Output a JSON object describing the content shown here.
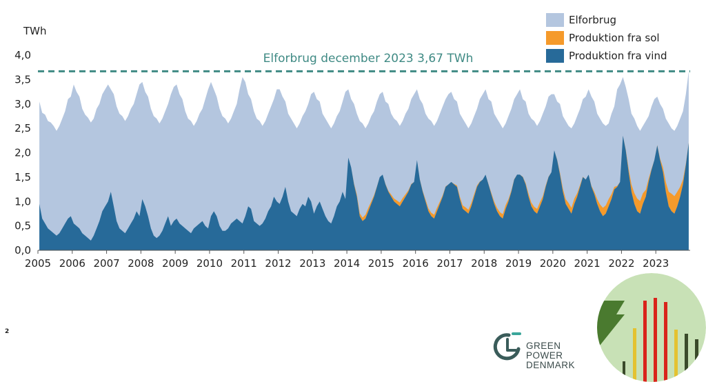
{
  "chart_data": {
    "type": "area",
    "title": "",
    "ylabel": "TWh",
    "xlabel": "",
    "ylim": [
      0,
      4
    ],
    "y_ticks": [
      "4,0",
      "3,5",
      "3,0",
      "2,5",
      "2,0",
      "1,5",
      "1,0",
      "0,5",
      "0,0"
    ],
    "y_tick_values": [
      4.0,
      3.5,
      3.0,
      2.5,
      2.0,
      1.5,
      1.0,
      0.5,
      0.0
    ],
    "x_ticks": [
      "2005",
      "2006",
      "2007",
      "2008",
      "2009",
      "2010",
      "2011",
      "2012",
      "2013",
      "2014",
      "2015",
      "2016",
      "2017",
      "2018",
      "2019",
      "2020",
      "2021",
      "2022",
      "2023"
    ],
    "x_range": [
      2005,
      2024
    ],
    "reference_line": {
      "label": "Elforbrug december 2023 3,67 TWh",
      "value": 3.67,
      "color": "#3f8a84",
      "style": "dashed"
    },
    "legend_position": "top-right",
    "colors": {
      "consumption": "#b4c6df",
      "solar": "#f59a2b",
      "wind": "#276a99"
    },
    "series": [
      {
        "name": "Elforbrug",
        "key": "consumption",
        "type": "area",
        "monthly": [
          3.05,
          2.82,
          2.78,
          2.65,
          2.62,
          2.55,
          2.45,
          2.55,
          2.7,
          2.85,
          3.1,
          3.15,
          3.4,
          3.25,
          3.15,
          2.9,
          2.78,
          2.72,
          2.62,
          2.7,
          2.9,
          3.0,
          3.2,
          3.3,
          3.4,
          3.3,
          3.2,
          2.95,
          2.8,
          2.75,
          2.65,
          2.75,
          2.9,
          3.0,
          3.2,
          3.4,
          3.45,
          3.25,
          3.15,
          2.9,
          2.75,
          2.7,
          2.6,
          2.7,
          2.85,
          3.0,
          3.2,
          3.35,
          3.4,
          3.2,
          3.1,
          2.85,
          2.7,
          2.65,
          2.55,
          2.65,
          2.8,
          2.9,
          3.1,
          3.3,
          3.45,
          3.3,
          3.15,
          2.9,
          2.75,
          2.7,
          2.6,
          2.7,
          2.85,
          3.0,
          3.3,
          3.55,
          3.45,
          3.2,
          3.1,
          2.85,
          2.7,
          2.65,
          2.55,
          2.65,
          2.8,
          2.95,
          3.1,
          3.3,
          3.3,
          3.15,
          3.05,
          2.8,
          2.7,
          2.6,
          2.5,
          2.6,
          2.75,
          2.85,
          3.0,
          3.2,
          3.25,
          3.1,
          3.05,
          2.8,
          2.7,
          2.6,
          2.5,
          2.6,
          2.75,
          2.85,
          3.05,
          3.25,
          3.3,
          3.1,
          3.0,
          2.8,
          2.65,
          2.6,
          2.5,
          2.6,
          2.75,
          2.85,
          3.05,
          3.2,
          3.25,
          3.05,
          3.0,
          2.8,
          2.7,
          2.65,
          2.55,
          2.65,
          2.8,
          2.9,
          3.1,
          3.2,
          3.3,
          3.1,
          3.0,
          2.8,
          2.7,
          2.65,
          2.55,
          2.65,
          2.8,
          2.95,
          3.1,
          3.2,
          3.25,
          3.1,
          3.05,
          2.8,
          2.7,
          2.6,
          2.5,
          2.6,
          2.75,
          2.9,
          3.1,
          3.2,
          3.3,
          3.1,
          3.05,
          2.8,
          2.7,
          2.6,
          2.5,
          2.6,
          2.75,
          2.9,
          3.1,
          3.2,
          3.3,
          3.1,
          3.05,
          2.8,
          2.7,
          2.65,
          2.55,
          2.65,
          2.8,
          2.95,
          3.15,
          3.2,
          3.2,
          3.05,
          3.0,
          2.75,
          2.65,
          2.55,
          2.5,
          2.6,
          2.75,
          2.9,
          3.1,
          3.15,
          3.3,
          3.15,
          3.05,
          2.8,
          2.7,
          2.6,
          2.55,
          2.6,
          2.8,
          2.95,
          3.3,
          3.4,
          3.55,
          3.35,
          3.1,
          2.8,
          2.7,
          2.55,
          2.45,
          2.55,
          2.65,
          2.75,
          2.95,
          3.1,
          3.15,
          3.0,
          2.9,
          2.7,
          2.6,
          2.5,
          2.45,
          2.55,
          2.7,
          2.85,
          3.2,
          3.67
        ]
      },
      {
        "name": "Produktion fra sol",
        "key": "solar",
        "type": "area",
        "monthly": [
          0,
          0,
          0,
          0,
          0,
          0,
          0,
          0,
          0,
          0,
          0,
          0,
          0,
          0,
          0,
          0,
          0,
          0,
          0,
          0,
          0,
          0,
          0,
          0,
          0,
          0,
          0,
          0,
          0,
          0,
          0,
          0,
          0,
          0,
          0,
          0,
          0,
          0,
          0,
          0,
          0,
          0,
          0,
          0,
          0,
          0,
          0,
          0,
          0,
          0,
          0,
          0,
          0,
          0,
          0,
          0,
          0,
          0,
          0,
          0,
          0,
          0,
          0,
          0,
          0,
          0,
          0,
          0,
          0,
          0,
          0,
          0,
          0,
          0,
          0,
          0,
          0,
          0,
          0,
          0,
          0,
          0,
          0,
          0,
          0,
          0,
          0,
          0,
          0,
          0,
          0,
          0,
          0,
          0,
          0,
          0,
          0,
          0,
          0,
          0,
          0,
          0,
          0,
          0,
          0,
          0,
          0,
          0,
          0,
          0,
          0.02,
          0.04,
          0.06,
          0.07,
          0.08,
          0.07,
          0.05,
          0.03,
          0.01,
          0,
          0,
          0.01,
          0.02,
          0.04,
          0.06,
          0.07,
          0.08,
          0.07,
          0.05,
          0.03,
          0.01,
          0,
          0,
          0.01,
          0.02,
          0.04,
          0.06,
          0.07,
          0.08,
          0.07,
          0.05,
          0.03,
          0.01,
          0,
          0,
          0.01,
          0.03,
          0.05,
          0.07,
          0.08,
          0.08,
          0.07,
          0.05,
          0.03,
          0.01,
          0,
          0,
          0.01,
          0.03,
          0.05,
          0.07,
          0.08,
          0.09,
          0.08,
          0.05,
          0.03,
          0.01,
          0,
          0,
          0.01,
          0.03,
          0.06,
          0.08,
          0.09,
          0.1,
          0.09,
          0.06,
          0.03,
          0.01,
          0,
          0,
          0.01,
          0.04,
          0.07,
          0.1,
          0.12,
          0.12,
          0.11,
          0.07,
          0.04,
          0.01,
          0,
          0,
          0.02,
          0.05,
          0.1,
          0.14,
          0.17,
          0.17,
          0.15,
          0.1,
          0.05,
          0.02,
          0,
          0,
          0.02,
          0.07,
          0.15,
          0.22,
          0.26,
          0.26,
          0.22,
          0.14,
          0.07,
          0.02,
          0,
          0.01,
          0.03,
          0.1,
          0.2,
          0.3,
          0.36,
          0.36,
          0.3,
          0.2,
          0.1,
          0.03,
          0.01
        ]
      },
      {
        "name": "Produktion fra vind",
        "key": "wind",
        "type": "area",
        "monthly": [
          0.95,
          0.65,
          0.55,
          0.45,
          0.4,
          0.35,
          0.3,
          0.35,
          0.45,
          0.55,
          0.65,
          0.7,
          0.55,
          0.5,
          0.45,
          0.35,
          0.3,
          0.25,
          0.2,
          0.3,
          0.45,
          0.6,
          0.8,
          0.9,
          1.0,
          1.2,
          0.9,
          0.6,
          0.45,
          0.4,
          0.35,
          0.45,
          0.55,
          0.65,
          0.8,
          0.7,
          1.05,
          0.9,
          0.7,
          0.45,
          0.3,
          0.25,
          0.3,
          0.4,
          0.55,
          0.7,
          0.5,
          0.6,
          0.65,
          0.55,
          0.5,
          0.45,
          0.4,
          0.35,
          0.45,
          0.5,
          0.55,
          0.6,
          0.5,
          0.45,
          0.7,
          0.8,
          0.7,
          0.5,
          0.4,
          0.4,
          0.45,
          0.55,
          0.6,
          0.65,
          0.6,
          0.55,
          0.7,
          0.9,
          0.85,
          0.6,
          0.55,
          0.5,
          0.55,
          0.65,
          0.8,
          0.9,
          1.1,
          1.0,
          0.95,
          1.1,
          1.3,
          1.0,
          0.8,
          0.75,
          0.7,
          0.85,
          0.95,
          0.9,
          1.1,
          1.0,
          0.75,
          0.9,
          1.0,
          0.85,
          0.7,
          0.6,
          0.55,
          0.7,
          0.9,
          1.0,
          1.2,
          1.05,
          1.9,
          1.7,
          1.35,
          1.1,
          0.7,
          0.6,
          0.65,
          0.8,
          0.95,
          1.1,
          1.3,
          1.5,
          1.55,
          1.35,
          1.2,
          1.1,
          1.0,
          0.95,
          0.9,
          1.0,
          1.1,
          1.2,
          1.35,
          1.4,
          1.85,
          1.45,
          1.2,
          1.0,
          0.8,
          0.7,
          0.65,
          0.8,
          0.95,
          1.1,
          1.3,
          1.35,
          1.4,
          1.35,
          1.3,
          1.05,
          0.85,
          0.8,
          0.75,
          0.9,
          1.1,
          1.3,
          1.4,
          1.45,
          1.55,
          1.35,
          1.15,
          0.95,
          0.8,
          0.7,
          0.65,
          0.85,
          1.0,
          1.2,
          1.45,
          1.55,
          1.55,
          1.5,
          1.35,
          1.1,
          0.9,
          0.8,
          0.75,
          0.9,
          1.05,
          1.3,
          1.5,
          1.6,
          2.05,
          1.85,
          1.55,
          1.2,
          0.95,
          0.85,
          0.75,
          0.95,
          1.1,
          1.3,
          1.5,
          1.45,
          1.55,
          1.3,
          1.15,
          0.95,
          0.8,
          0.7,
          0.75,
          0.9,
          1.05,
          1.25,
          1.3,
          1.4,
          2.35,
          2.05,
          1.6,
          1.2,
          0.95,
          0.8,
          0.75,
          0.95,
          1.1,
          1.4,
          1.65,
          1.85,
          2.15,
          1.85,
          1.6,
          1.2,
          0.9,
          0.8,
          0.75,
          0.9,
          1.1,
          1.35,
          1.75,
          2.2
        ]
      }
    ]
  },
  "legend": {
    "items": [
      {
        "label": "Elforbrug",
        "color": "#b4c6df"
      },
      {
        "label": "Produktion fra sol",
        "color": "#f59a2b"
      },
      {
        "label": "Produktion fra vind",
        "color": "#276a99"
      }
    ]
  },
  "slide": {
    "number": "2"
  },
  "logo": {
    "line1": "GREEN",
    "line2": "POWER",
    "line3": "DENMARK",
    "icon": "green-power-denmark-logo-icon"
  }
}
